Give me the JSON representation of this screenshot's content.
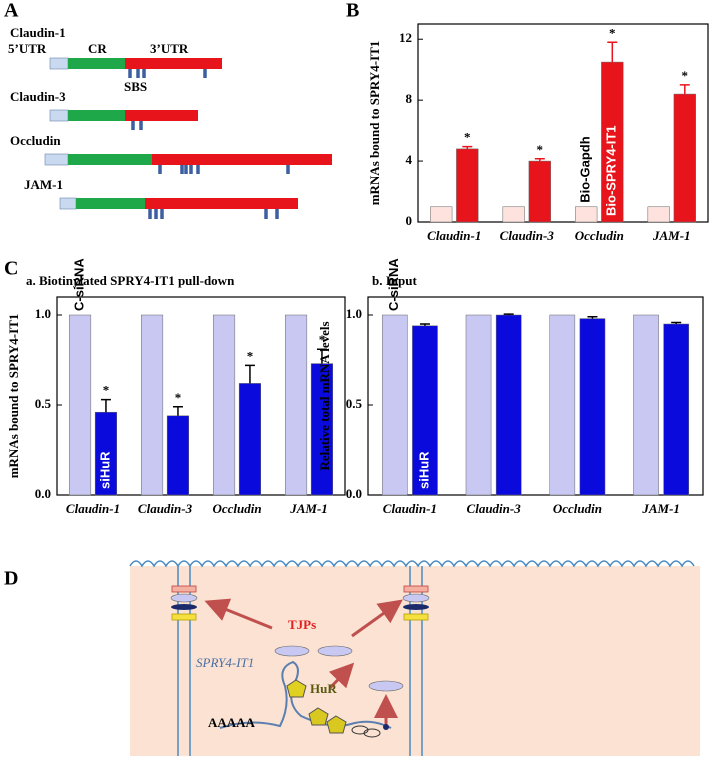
{
  "panels": {
    "a": "A",
    "b": "B",
    "c": "C",
    "d": "D"
  },
  "panel_a": {
    "genes": [
      "Claudin-1",
      "Claudin-3",
      "Occludin",
      "JAM-1"
    ],
    "labels": {
      "utr5": "5’UTR",
      "cr": "CR",
      "utr3": "3’UTR",
      "sbs": "SBS"
    }
  },
  "panel_d": {
    "tjps": "TJPs",
    "lncrna": "SPRY4-IT1",
    "hur": "HuR",
    "polya": "AAAAA"
  },
  "chart_data": [
    {
      "type": "bar",
      "ylabel": "mRNAs bound to SPRY4-IT1",
      "categories": [
        "Claudin-1",
        "Claudin-3",
        "Occludin",
        "JAM-1"
      ],
      "series": [
        {
          "name": "Bio-Gapdh",
          "color": "#fde2de",
          "values": [
            1,
            1,
            1,
            1
          ]
        },
        {
          "name": "Bio-SPRY4-IT1",
          "color": "#e8141b",
          "values": [
            4.8,
            4.0,
            10.5,
            8.4
          ],
          "errors": [
            0.15,
            0.15,
            1.3,
            0.6
          ],
          "significance": [
            "*",
            "*",
            "*",
            "*"
          ]
        }
      ],
      "error_color": "#e8141b",
      "ylim": [
        0,
        13
      ],
      "yticks": [
        0,
        4,
        8,
        12
      ]
    },
    {
      "type": "bar",
      "title": "a.  Biotinylated SPRY4-IT1 pull-down",
      "ylabel": "mRNAs bound to SPRY4-IT1",
      "categories": [
        "Claudin-1",
        "Claudin-3",
        "Occludin",
        "JAM-1"
      ],
      "series": [
        {
          "name": "C-siRNA",
          "color": "#c8c8f2",
          "values": [
            1,
            1,
            1,
            1
          ]
        },
        {
          "name": "siHuR",
          "color": "#0a0adc",
          "values": [
            0.46,
            0.44,
            0.62,
            0.73
          ],
          "errors": [
            0.07,
            0.05,
            0.1,
            0.08
          ],
          "significance": [
            "*",
            "*",
            "*",
            "*"
          ]
        }
      ],
      "error_color": "#000000",
      "ylim": [
        0,
        1.1
      ],
      "yticks": [
        {
          "value": 0,
          "label": "0.0"
        },
        {
          "value": 0.5,
          "label": "0.5"
        },
        {
          "value": 1,
          "label": "1.0"
        }
      ]
    },
    {
      "type": "bar",
      "title": "b.  Input",
      "ylabel": "Relative total mRNA levels",
      "categories": [
        "Claudin-1",
        "Claudin-3",
        "Occludin",
        "JAM-1"
      ],
      "series": [
        {
          "name": "C-siRNA",
          "color": "#c8c8f2",
          "values": [
            1,
            1,
            1,
            1
          ]
        },
        {
          "name": "siHuR",
          "color": "#0a0adc",
          "values": [
            0.94,
            1.0,
            0.98,
            0.95
          ],
          "errors": [
            0.01,
            0.005,
            0.01,
            0.008
          ]
        }
      ],
      "error_color": "#000000",
      "ylim": [
        0,
        1.1
      ],
      "yticks": [
        {
          "value": 0,
          "label": "0.0"
        },
        {
          "value": 0.5,
          "label": "0.5"
        },
        {
          "value": 1,
          "label": "1.0"
        }
      ]
    }
  ]
}
